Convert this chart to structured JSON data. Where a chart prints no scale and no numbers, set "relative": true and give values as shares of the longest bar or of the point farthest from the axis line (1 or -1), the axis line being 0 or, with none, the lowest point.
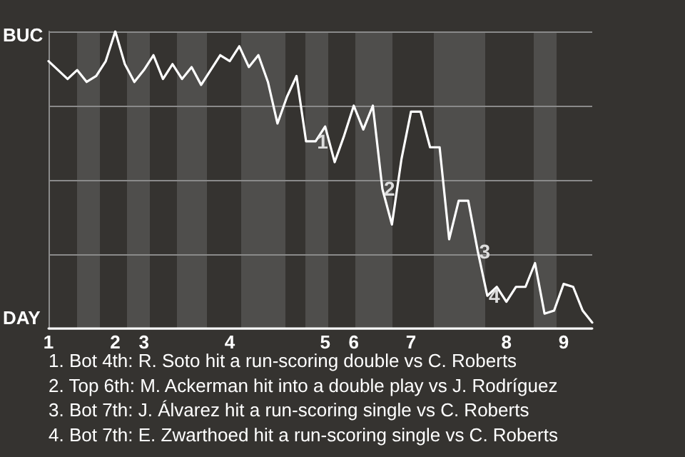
{
  "chart_data": {
    "type": "line",
    "relative": true,
    "categories": [
      "1",
      null,
      null,
      null,
      null,
      null,
      null,
      "2",
      null,
      null,
      "3",
      null,
      null,
      null,
      null,
      null,
      null,
      null,
      null,
      "4",
      null,
      null,
      null,
      null,
      null,
      null,
      null,
      null,
      null,
      "5",
      null,
      null,
      "6",
      null,
      null,
      null,
      null,
      null,
      "7",
      null,
      null,
      null,
      null,
      null,
      null,
      null,
      null,
      null,
      "8",
      null,
      null,
      null,
      null,
      null,
      "9",
      null,
      null,
      null
    ],
    "grid": "y",
    "marker": "none",
    "line_style": "solid",
    "series": [
      {
        "color": "#ffffff",
        "values": [
          0.9,
          0.87,
          0.84,
          0.87,
          0.83,
          0.85,
          0.9,
          1,
          0.89,
          0.83,
          0.87,
          0.92,
          0.84,
          0.89,
          0.84,
          0.88,
          0.82,
          0.87,
          0.92,
          0.9,
          0.95,
          0.88,
          0.92,
          0.83,
          0.69,
          0.78,
          0.85,
          0.63,
          0.63,
          0.68,
          0.56,
          0.65,
          0.75,
          0.67,
          0.75,
          0.47,
          0.35,
          0.57,
          0.73,
          0.73,
          0.61,
          0.61,
          0.3,
          0.43,
          0.43,
          0.26,
          0.11,
          0.14,
          0.09,
          0.14,
          0.14,
          0.22,
          0.05,
          0.06,
          0.15,
          0.14,
          0.06,
          0.02
        ]
      }
    ],
    "annotations": [
      "BUC",
      "DAY",
      {
        "text": "1",
        "y": 0.63
      },
      {
        "text": "2",
        "y": 0.47
      },
      {
        "text": "3",
        "y": 0.26
      },
      {
        "text": "4",
        "y": 0.11
      },
      "1. Bot 4th: R. Soto hit a run-scoring double vs C. Roberts",
      "2. Top 6th: M. Ackerman hit into a double play vs J. Rodríguez",
      "3. Bot 7th: J. Álvarez hit a run-scoring single vs C. Roberts",
      "4. Bot 7th: E. Zwarthoed hit a run-scoring single vs C. Roberts"
    ]
  }
}
